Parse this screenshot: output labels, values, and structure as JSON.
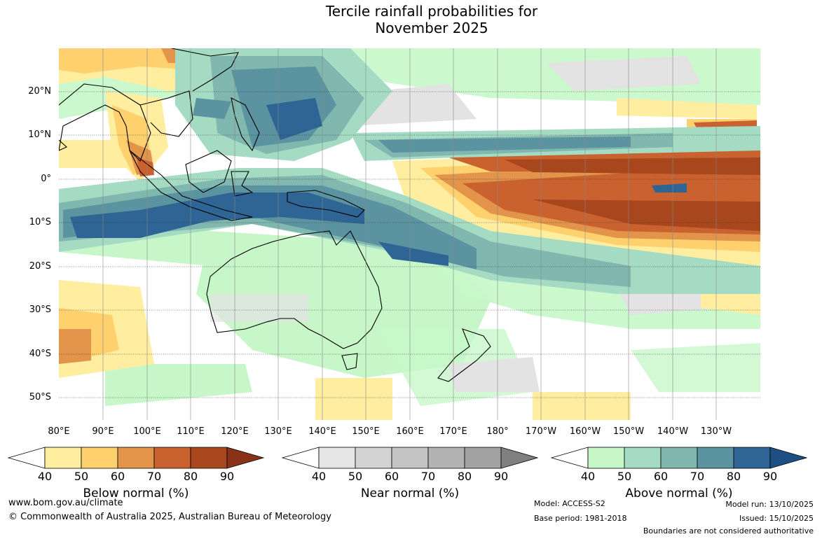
{
  "title": {
    "line1": "Tercile rainfall probabilities for",
    "line2": "November 2025"
  },
  "map": {
    "latitude_labels": [
      "20°N",
      "10°N",
      "0°",
      "10°S",
      "20°S",
      "30°S",
      "40°S",
      "50°S"
    ],
    "longitude_labels": [
      "80°E",
      "90°E",
      "100°E",
      "110°E",
      "120°E",
      "130°E",
      "140°E",
      "150°E",
      "160°E",
      "170°E",
      "180°",
      "170°W",
      "160°W",
      "150°W",
      "140°W",
      "130°W"
    ],
    "lat_range": [
      -55,
      30
    ],
    "lon_range": [
      80,
      240
    ]
  },
  "colorbars": [
    {
      "name": "Below normal (%)",
      "ticks": [
        "40",
        "50",
        "60",
        "70",
        "80",
        "90"
      ],
      "colors": [
        "#ffffff",
        "#ffeda0",
        "#fed16e",
        "#e2944a",
        "#c9622f",
        "#a8461e",
        "#8a3217"
      ]
    },
    {
      "name": "Near normal (%)",
      "ticks": [
        "40",
        "50",
        "60",
        "70",
        "80",
        "90"
      ],
      "colors": [
        "#ffffff",
        "#e6e6e6",
        "#d3d3d3",
        "#c4c4c4",
        "#b3b3b3",
        "#a2a2a2",
        "#808080"
      ]
    },
    {
      "name": "Above normal (%)",
      "ticks": [
        "40",
        "50",
        "60",
        "70",
        "80",
        "90"
      ],
      "colors": [
        "#ffffff",
        "#c7f7c9",
        "#a5dbc2",
        "#80b8af",
        "#5b93a0",
        "#2f6594",
        "#1e4f82"
      ]
    }
  ],
  "footer": {
    "url": "www.bom.gov.au/climate",
    "copyright": "© Commonwealth of Australia 2025, Australian Bureau of Meteorology",
    "model": "Model: ACCESS-S2",
    "base_period": "Base period: 1981-2018",
    "model_run": "Model run: 13/10/2025",
    "issued": "Issued: 15/10/2025",
    "disclaimer": "Boundaries are not considered authoritative"
  }
}
